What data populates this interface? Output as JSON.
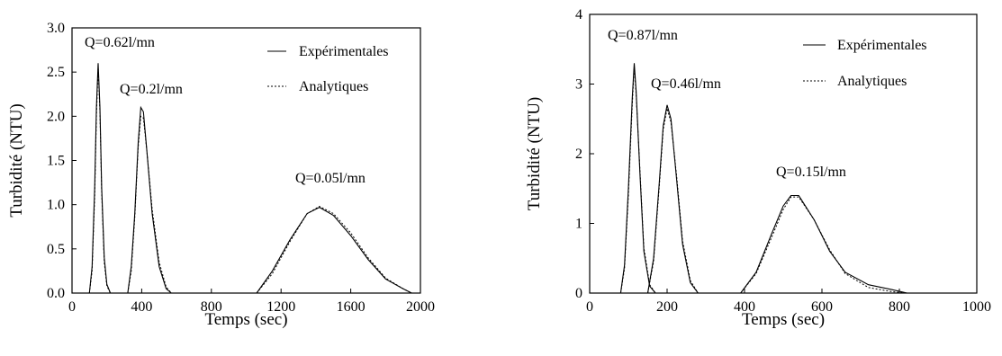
{
  "chart_data": [
    {
      "type": "line",
      "title": "",
      "xlabel": "Temps (sec)",
      "ylabel": "Turbidité (NTU)",
      "xlim": [
        0,
        2000
      ],
      "ylim": [
        0,
        3.0
      ],
      "xticks": [
        0,
        400,
        800,
        1200,
        1600,
        2000
      ],
      "xtick_labels": [
        "0",
        "400",
        "800",
        "1200",
        "1600",
        "2000"
      ],
      "yticks": [
        0,
        0.5,
        1.0,
        1.5,
        2.0,
        2.5,
        3.0
      ],
      "ytick_labels": [
        "0.0",
        "0.5",
        "1.0",
        "1.5",
        "2.0",
        "2.5",
        "3.0"
      ],
      "grid": false,
      "legend": {
        "placement": "top-right",
        "entries": [
          {
            "label": "Expérimentales",
            "style": "solid"
          },
          {
            "label": "Analytiques",
            "style": "dotted"
          }
        ]
      },
      "peaks": [
        {
          "label": "Q=0.62l/mn",
          "x": [
            100,
            115,
            130,
            140,
            150,
            160,
            170,
            185,
            200,
            220
          ],
          "experimental": [
            0.0,
            0.3,
            1.2,
            2.1,
            2.6,
            2.1,
            1.2,
            0.4,
            0.1,
            0.0
          ],
          "analytical": [
            0.0,
            0.25,
            1.1,
            2.0,
            2.55,
            2.05,
            1.15,
            0.35,
            0.08,
            0.0
          ]
        },
        {
          "label": "Q=0.2l/mn",
          "x": [
            320,
            340,
            360,
            380,
            395,
            410,
            430,
            460,
            500,
            540,
            570
          ],
          "experimental": [
            0.0,
            0.3,
            0.9,
            1.7,
            2.1,
            2.05,
            1.6,
            0.9,
            0.3,
            0.05,
            0.0
          ],
          "analytical": [
            0.0,
            0.25,
            0.85,
            1.65,
            2.0,
            1.98,
            1.6,
            0.95,
            0.35,
            0.07,
            0.0
          ]
        },
        {
          "label": "Q=0.05l/mn",
          "x": [
            1060,
            1150,
            1250,
            1350,
            1420,
            1500,
            1600,
            1700,
            1800,
            1900,
            1950
          ],
          "experimental": [
            0.0,
            0.25,
            0.6,
            0.9,
            0.97,
            0.88,
            0.65,
            0.38,
            0.16,
            0.05,
            0.0
          ],
          "analytical": [
            0.0,
            0.22,
            0.58,
            0.9,
            0.98,
            0.9,
            0.68,
            0.4,
            0.17,
            0.05,
            0.0
          ]
        }
      ]
    },
    {
      "type": "line",
      "title": "",
      "xlabel": "Temps (sec)",
      "ylabel": "Turbidité (NTU)",
      "xlim": [
        0,
        1000
      ],
      "ylim": [
        0,
        4
      ],
      "xticks": [
        0,
        200,
        400,
        600,
        800,
        1000
      ],
      "xtick_labels": [
        "0",
        "200",
        "400",
        "600",
        "800",
        "1000"
      ],
      "yticks": [
        0,
        1,
        2,
        3,
        4
      ],
      "ytick_labels": [
        "0",
        "1",
        "2",
        "3",
        "4"
      ],
      "grid": false,
      "legend": {
        "placement": "top-right",
        "entries": [
          {
            "label": "Expérimentales",
            "style": "solid"
          },
          {
            "label": "Analytiques",
            "style": "dotted"
          }
        ]
      },
      "peaks": [
        {
          "label": "Q=0.87l/mn",
          "x": [
            80,
            90,
            100,
            110,
            115,
            120,
            130,
            140,
            155,
            170
          ],
          "experimental": [
            0.0,
            0.4,
            1.5,
            2.8,
            3.3,
            2.9,
            1.7,
            0.6,
            0.1,
            0.0
          ],
          "analytical": [
            0.0,
            0.35,
            1.4,
            2.7,
            3.25,
            2.85,
            1.75,
            0.65,
            0.12,
            0.0
          ]
        },
        {
          "label": "Q=0.46l/mn",
          "x": [
            150,
            165,
            180,
            190,
            200,
            210,
            225,
            240,
            260,
            280
          ],
          "experimental": [
            0.0,
            0.5,
            1.6,
            2.4,
            2.7,
            2.5,
            1.6,
            0.7,
            0.15,
            0.0
          ],
          "analytical": [
            0.0,
            0.45,
            1.55,
            2.35,
            2.65,
            2.45,
            1.65,
            0.75,
            0.18,
            0.0
          ]
        },
        {
          "label": "Q=0.15l/mn",
          "x": [
            390,
            430,
            470,
            500,
            520,
            540,
            580,
            620,
            660,
            720,
            780,
            820
          ],
          "experimental": [
            0.0,
            0.3,
            0.85,
            1.25,
            1.4,
            1.4,
            1.05,
            0.6,
            0.3,
            0.12,
            0.05,
            0.0
          ],
          "analytical": [
            0.0,
            0.28,
            0.8,
            1.2,
            1.38,
            1.38,
            1.05,
            0.62,
            0.28,
            0.08,
            0.02,
            0.0
          ]
        }
      ]
    }
  ]
}
